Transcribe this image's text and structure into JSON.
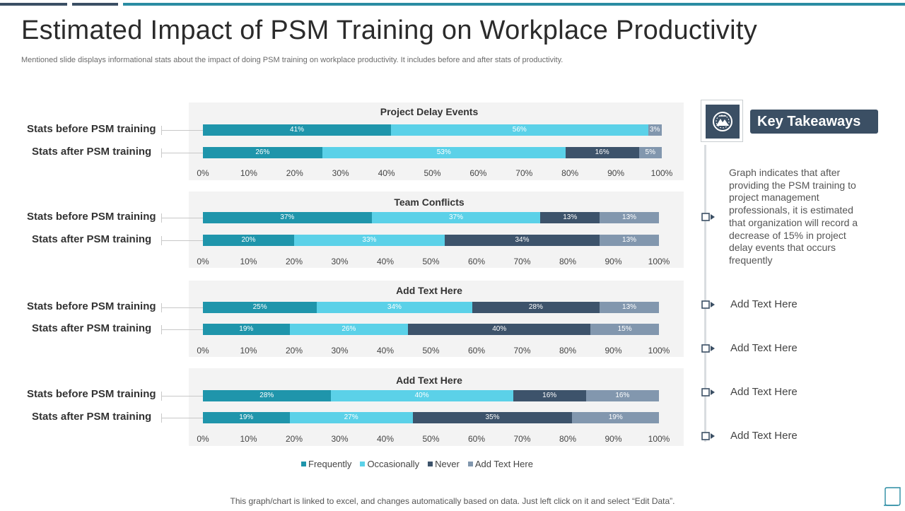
{
  "slide": {
    "title": "Estimated Impact of PSM Training on Workplace Productivity",
    "subtitle": "Mentioned slide displays informational stats about the impact of doing PSM training on workplace productivity. It includes before and after stats of productivity.",
    "footer": "This graph/chart is linked to excel,  and changes automatically based on data. Just left click on it and select “Edit  Data”."
  },
  "colors": {
    "frequently": "#1f95ab",
    "occasionally": "#5bd1e8",
    "never": "#3d536b",
    "add_text": "#8297ae",
    "panel": "#f3f3f3",
    "dark_slate": "#3b4f64",
    "topbar_dark": "#3b4f64",
    "topbar_teal": "#2a8ca3"
  },
  "chart_data": [
    {
      "type": "bar",
      "orientation": "horizontal",
      "stacked": "percent",
      "title": "Project Delay Events",
      "categories": [
        "Stats before PSM training",
        "Stats after PSM training"
      ],
      "series": [
        {
          "name": "Frequently",
          "values": [
            41,
            26
          ]
        },
        {
          "name": "Occasionally",
          "values": [
            56,
            53
          ]
        },
        {
          "name": "Never",
          "values": [
            0,
            16
          ]
        },
        {
          "name": "Add Text Here",
          "values": [
            3,
            5
          ]
        }
      ],
      "xlim": [
        0,
        100
      ],
      "xticks": [
        "0%",
        "10%",
        "20%",
        "30%",
        "40%",
        "50%",
        "60%",
        "70%",
        "80%",
        "90%",
        "100%"
      ]
    },
    {
      "type": "bar",
      "orientation": "horizontal",
      "stacked": "percent",
      "title": "Team Conflicts",
      "categories": [
        "Stats before PSM training",
        "Stats after PSM training"
      ],
      "series": [
        {
          "name": "Frequently",
          "values": [
            37,
            20
          ]
        },
        {
          "name": "Occasionally",
          "values": [
            37,
            33
          ]
        },
        {
          "name": "Never",
          "values": [
            13,
            34
          ]
        },
        {
          "name": "Add Text Here",
          "values": [
            13,
            13
          ]
        }
      ],
      "xlim": [
        0,
        100
      ],
      "xticks": [
        "0%",
        "10%",
        "20%",
        "30%",
        "40%",
        "50%",
        "60%",
        "70%",
        "80%",
        "90%",
        "100%"
      ]
    },
    {
      "type": "bar",
      "orientation": "horizontal",
      "stacked": "percent",
      "title": "Add  Text Here",
      "categories": [
        "Stats before PSM training",
        "Stats after PSM training"
      ],
      "series": [
        {
          "name": "Frequently",
          "values": [
            25,
            19
          ]
        },
        {
          "name": "Occasionally",
          "values": [
            34,
            26
          ]
        },
        {
          "name": "Never",
          "values": [
            28,
            40
          ]
        },
        {
          "name": "Add Text Here",
          "values": [
            13,
            15
          ]
        }
      ],
      "xlim": [
        0,
        100
      ],
      "xticks": [
        "0%",
        "10%",
        "20%",
        "30%",
        "40%",
        "50%",
        "60%",
        "70%",
        "80%",
        "90%",
        "100%"
      ]
    },
    {
      "type": "bar",
      "orientation": "horizontal",
      "stacked": "percent",
      "title": "Add  Text Here",
      "categories": [
        "Stats before PSM training",
        "Stats after PSM training"
      ],
      "series": [
        {
          "name": "Frequently",
          "values": [
            28,
            19
          ]
        },
        {
          "name": "Occasionally",
          "values": [
            40,
            27
          ]
        },
        {
          "name": "Never",
          "values": [
            16,
            35
          ]
        },
        {
          "name": "Add Text Here",
          "values": [
            16,
            19
          ]
        }
      ],
      "xlim": [
        0,
        100
      ],
      "xticks": [
        "0%",
        "10%",
        "20%",
        "30%",
        "40%",
        "50%",
        "60%",
        "70%",
        "80%",
        "90%",
        "100%"
      ]
    }
  ],
  "legend": [
    "Frequently",
    "Occasionally",
    "Never",
    "Add Text Here"
  ],
  "takeaways": {
    "header": "Key Takeaways",
    "icon": "mountain-peak-badge-icon",
    "paragraph": "Graph indicates that after providing the PSM training to project management professionals, it is estimated that organization will record a decrease of 15% in project delay events that occurs frequently",
    "items": [
      "Add Text Here",
      "Add Text Here",
      "Add Text Here",
      "Add Text Here"
    ]
  }
}
